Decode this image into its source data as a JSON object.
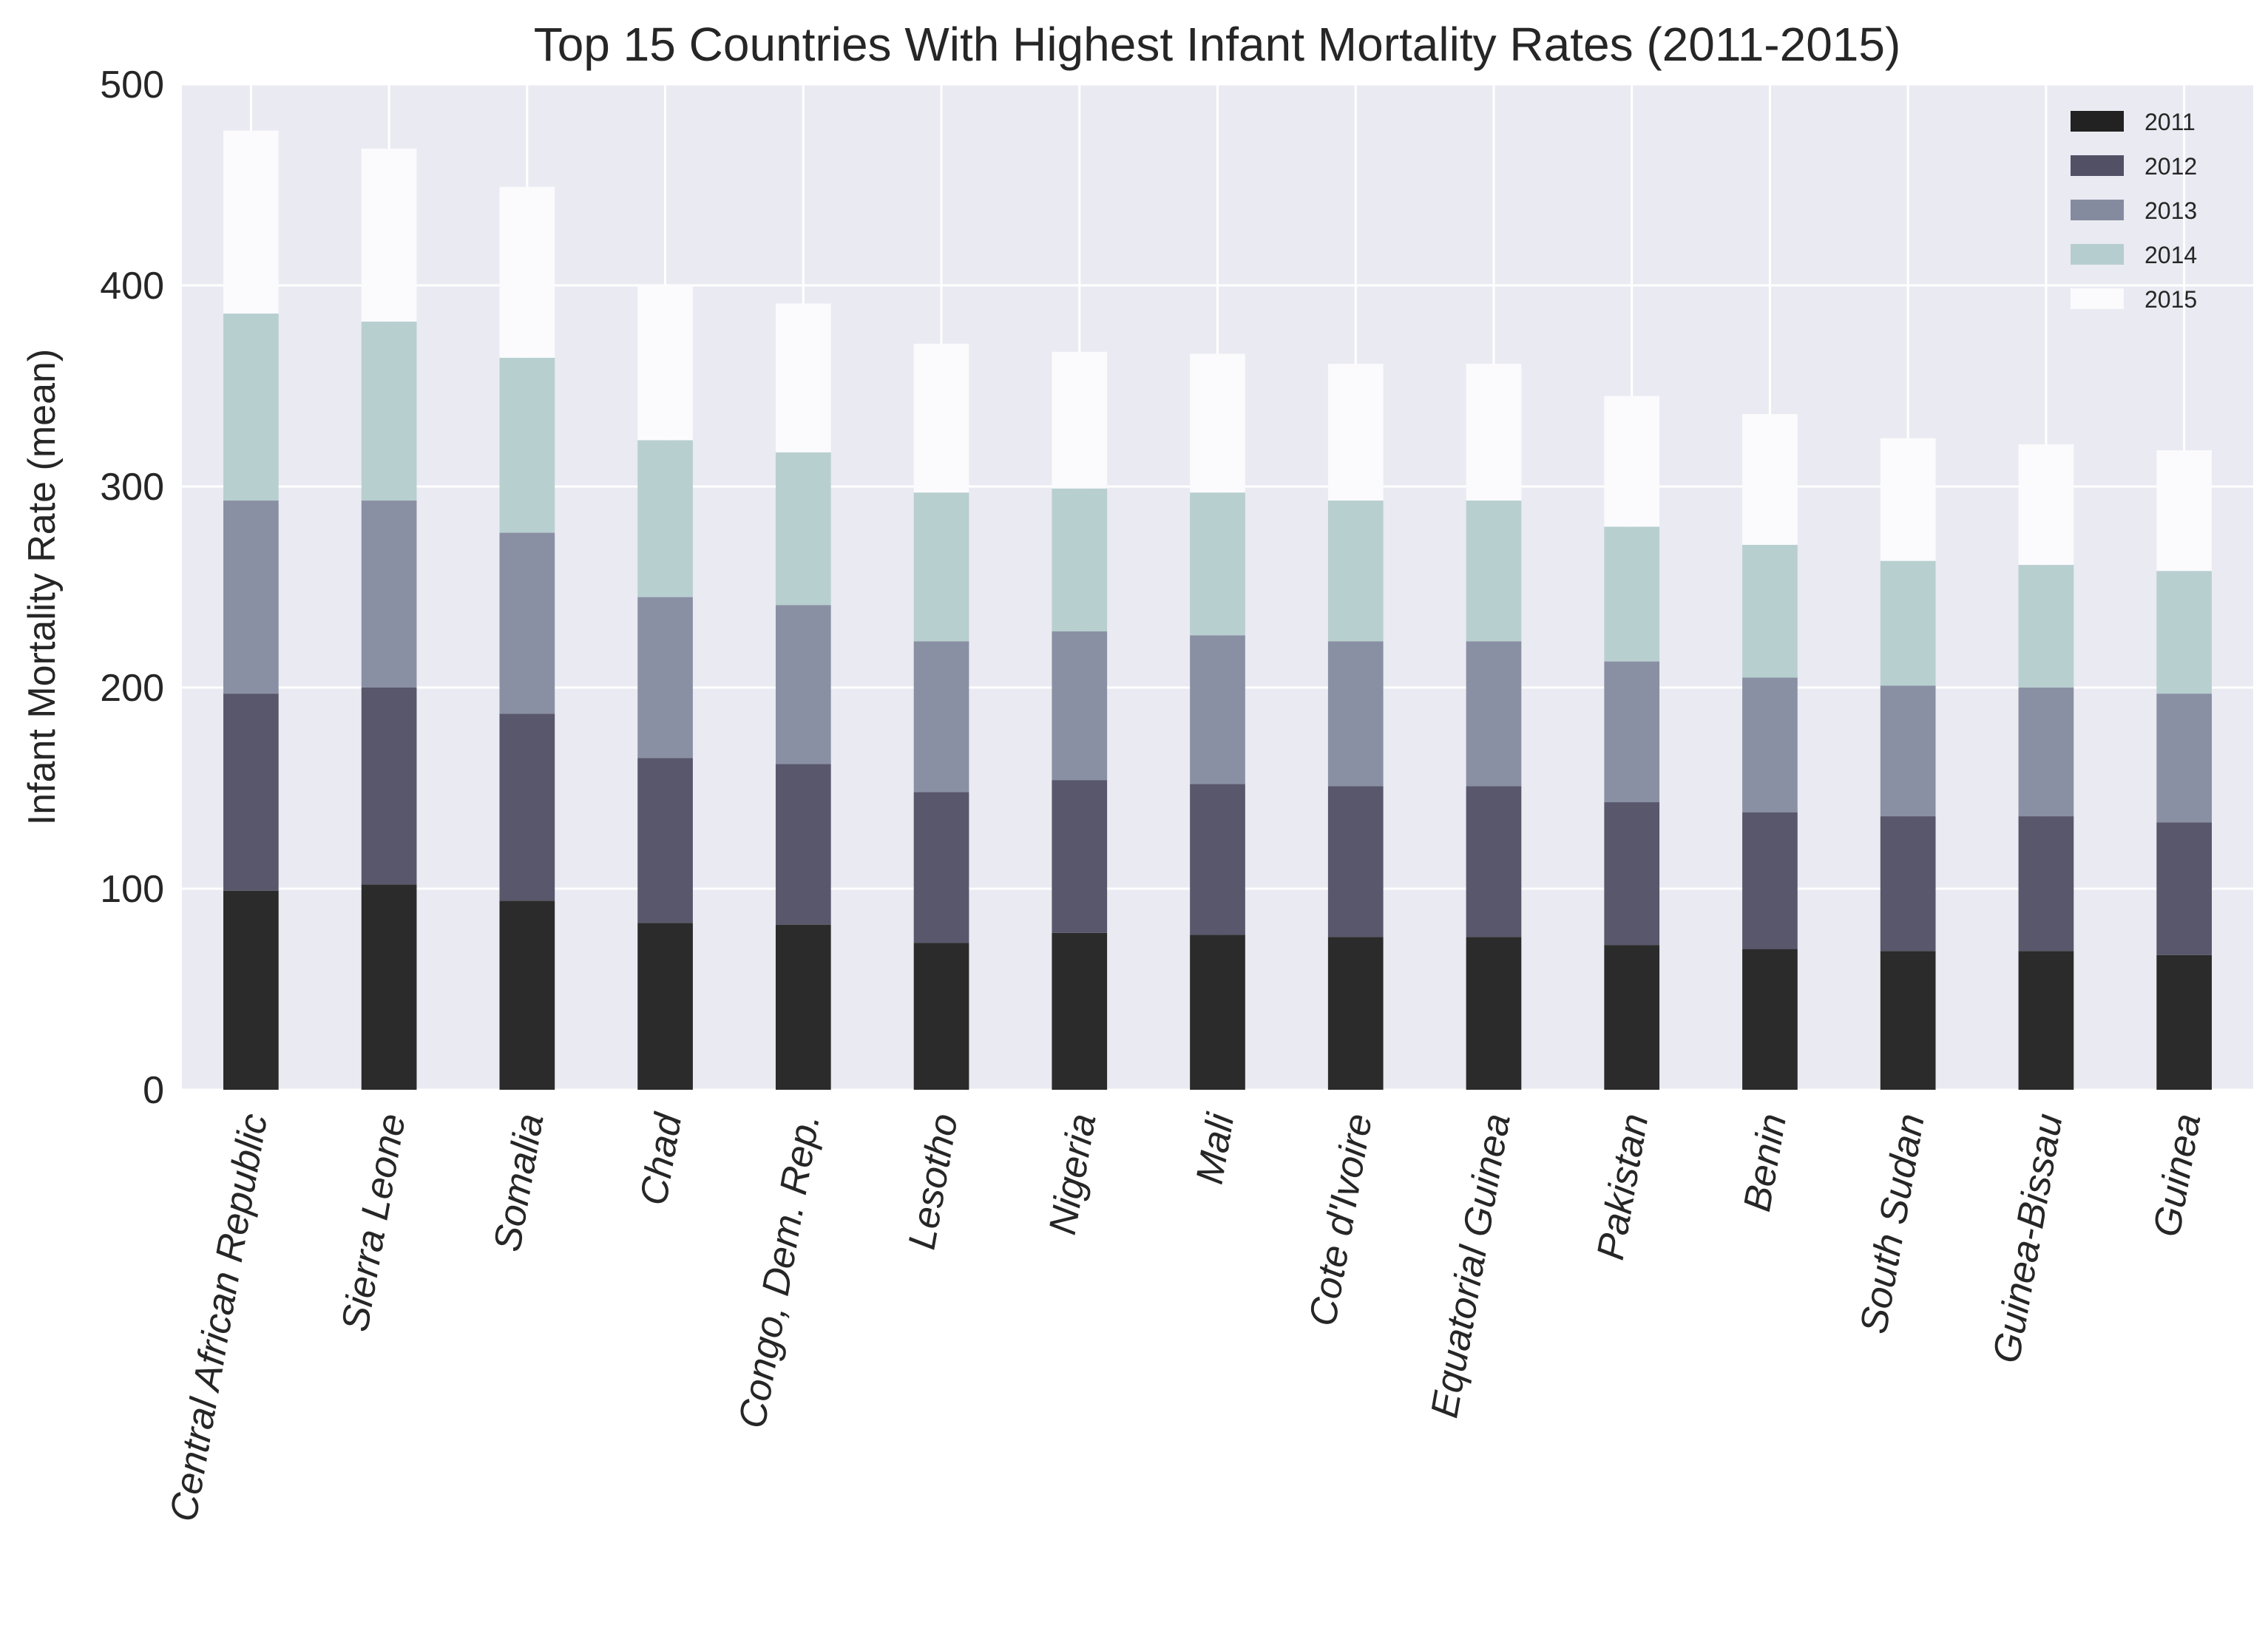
{
  "chart_data": {
    "type": "bar",
    "stacked": true,
    "title": "Top 15 Countries With Highest Infant Mortality Rates (2011-2015)",
    "xlabel": "",
    "ylabel": "Infant Mortality Rate (mean)",
    "ylim": [
      0,
      500
    ],
    "yticks": [
      "0",
      "100",
      "200",
      "300",
      "400",
      "500"
    ],
    "grid": true,
    "legend_position": "top-right",
    "categories": [
      "Central African Republic",
      "Sierra Leone",
      "Somalia",
      "Chad",
      "Congo, Dem. Rep.",
      "Lesotho",
      "Nigeria",
      "Mali",
      "Cote d'Ivoire",
      "Equatorial Guinea",
      "Pakistan",
      "Benin",
      "South Sudan",
      "Guinea-Bissau",
      "Guinea"
    ],
    "series": [
      {
        "name": "2011",
        "color": "#222222",
        "values": [
          99,
          102,
          94,
          83,
          82,
          73,
          78,
          77,
          76,
          76,
          72,
          70,
          69,
          69,
          67
        ]
      },
      {
        "name": "2012",
        "color": "#515065",
        "values": [
          98,
          98,
          93,
          82,
          80,
          75,
          76,
          75,
          75,
          75,
          71,
          68,
          67,
          67,
          66
        ]
      },
      {
        "name": "2013",
        "color": "#858b9f",
        "values": [
          96,
          93,
          90,
          80,
          79,
          75,
          74,
          74,
          72,
          72,
          70,
          67,
          65,
          64,
          64
        ]
      },
      {
        "name": "2014",
        "color": "#b5cdce",
        "values": [
          93,
          89,
          87,
          78,
          76,
          74,
          71,
          71,
          70,
          70,
          67,
          66,
          62,
          61,
          61
        ]
      },
      {
        "name": "2015",
        "color": "#fbfbfd",
        "values": [
          91,
          86,
          85,
          77,
          74,
          74,
          68,
          69,
          68,
          68,
          65,
          65,
          61,
          60,
          60
        ]
      }
    ]
  }
}
